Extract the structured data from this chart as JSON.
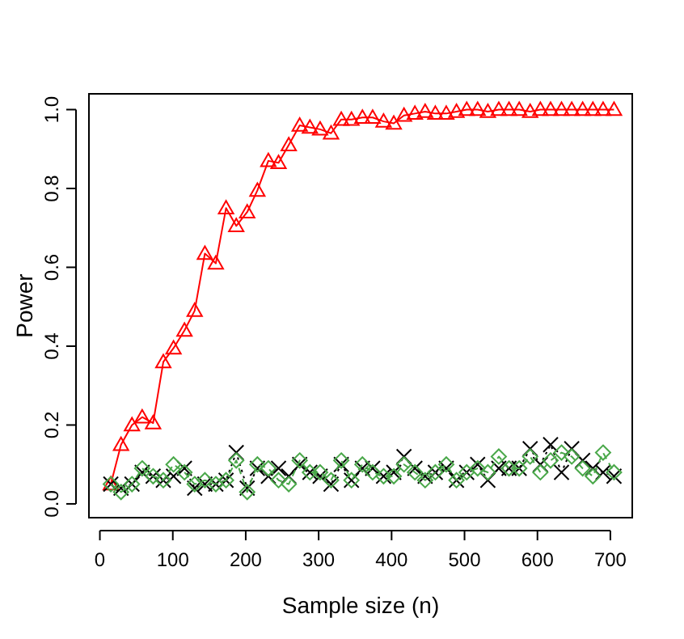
{
  "chart_data": {
    "type": "line",
    "xlabel": "Sample size (n)",
    "ylabel": "Power",
    "x": [
      15,
      29,
      44,
      58,
      73,
      87,
      101,
      116,
      130,
      144,
      159,
      173,
      187,
      202,
      216,
      231,
      245,
      259,
      274,
      288,
      302,
      317,
      331,
      345,
      360,
      374,
      389,
      403,
      417,
      432,
      446,
      460,
      475,
      489,
      503,
      518,
      532,
      547,
      561,
      575,
      590,
      604,
      618,
      633,
      647,
      662,
      676,
      690,
      705
    ],
    "series": [
      {
        "color": "#ff0000",
        "marker": "triangle",
        "line_style": "solid",
        "values": [
          0.05,
          0.15,
          0.2,
          0.22,
          0.205,
          0.36,
          0.395,
          0.44,
          0.49,
          0.635,
          0.61,
          0.75,
          0.705,
          0.74,
          0.795,
          0.87,
          0.865,
          0.91,
          0.96,
          0.955,
          0.95,
          0.94,
          0.975,
          0.975,
          0.98,
          0.98,
          0.97,
          0.965,
          0.985,
          0.99,
          0.995,
          0.99,
          0.99,
          0.995,
          1.0,
          1.0,
          0.995,
          1.0,
          1.0,
          1.0,
          0.995,
          1.0,
          1.0,
          1.0,
          1.0,
          1.0,
          1.0,
          1.0,
          1.0
        ]
      },
      {
        "color": "#000000",
        "marker": "cross",
        "line_style": "dotted",
        "values": [
          0.05,
          0.04,
          0.05,
          0.08,
          0.07,
          0.06,
          0.07,
          0.09,
          0.04,
          0.05,
          0.05,
          0.06,
          0.13,
          0.04,
          0.09,
          0.07,
          0.09,
          0.07,
          0.1,
          0.08,
          0.07,
          0.05,
          0.1,
          0.06,
          0.09,
          0.09,
          0.07,
          0.08,
          0.12,
          0.09,
          0.07,
          0.08,
          0.09,
          0.06,
          0.08,
          0.1,
          0.06,
          0.09,
          0.09,
          0.09,
          0.14,
          0.1,
          0.15,
          0.08,
          0.14,
          0.11,
          0.09,
          0.08,
          0.07
        ]
      },
      {
        "color": "#4aa84a",
        "marker": "diamond",
        "line_style": "dashed",
        "values": [
          0.05,
          0.03,
          0.05,
          0.09,
          0.07,
          0.06,
          0.1,
          0.08,
          0.05,
          0.06,
          0.05,
          0.06,
          0.11,
          0.03,
          0.1,
          0.09,
          0.06,
          0.05,
          0.11,
          0.08,
          0.08,
          0.06,
          0.11,
          0.06,
          0.1,
          0.08,
          0.07,
          0.07,
          0.1,
          0.08,
          0.06,
          0.08,
          0.1,
          0.06,
          0.08,
          0.09,
          0.08,
          0.12,
          0.09,
          0.09,
          0.12,
          0.08,
          0.11,
          0.13,
          0.12,
          0.09,
          0.07,
          0.13,
          0.08
        ]
      }
    ],
    "xlim": [
      -15,
      730
    ],
    "ylim": [
      -0.035,
      1.04
    ],
    "xticks": [
      0,
      100,
      200,
      300,
      400,
      500,
      600,
      700
    ],
    "yticks": [
      {
        "value": 0,
        "label": "0.0"
      },
      {
        "value": 0.2,
        "label": "0.2"
      },
      {
        "value": 0.4,
        "label": "0.4"
      },
      {
        "value": 0.6,
        "label": "0.6"
      },
      {
        "value": 0.8,
        "label": "0.8"
      },
      {
        "value": 1,
        "label": "1.0"
      }
    ],
    "grid": false
  }
}
